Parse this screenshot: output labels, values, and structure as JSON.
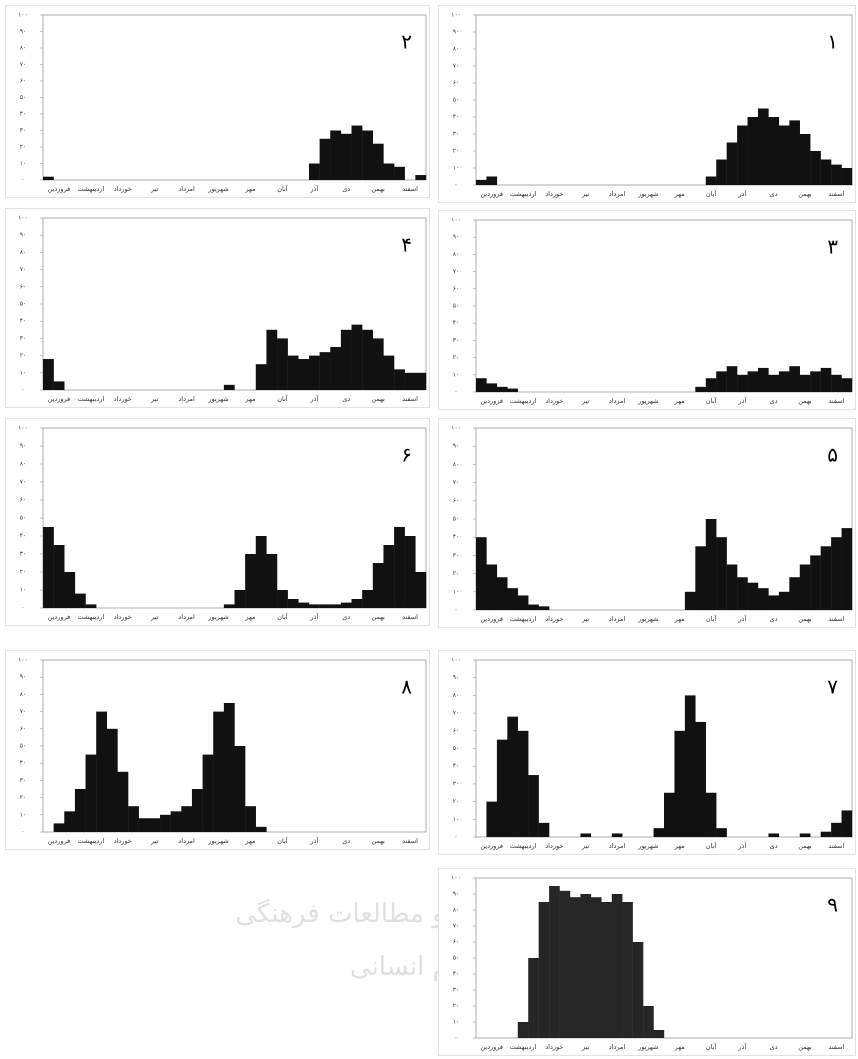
{
  "chart_data": [
    {
      "type": "bar",
      "title": "۱",
      "color": "#111111",
      "ylim": [
        0,
        100
      ],
      "yticks": [
        {
          "value": 0,
          "label": "۰"
        },
        {
          "value": 10,
          "label": "۱۰"
        },
        {
          "value": 20,
          "label": "۲۰"
        },
        {
          "value": 30,
          "label": "۳۰"
        },
        {
          "value": 40,
          "label": "۴۰"
        },
        {
          "value": 50,
          "label": "۵۰"
        },
        {
          "value": 60,
          "label": "۶۰"
        },
        {
          "value": 70,
          "label": "۷۰"
        },
        {
          "value": 80,
          "label": "۸۰"
        },
        {
          "value": 90,
          "label": "۹۰"
        },
        {
          "value": 100,
          "label": "۱۰۰"
        }
      ],
      "categories": [
        null,
        "فروردین",
        null,
        null,
        "اردیبهشت",
        null,
        null,
        "خورداد",
        null,
        null,
        "تیر",
        null,
        null,
        "امرداد",
        null,
        null,
        "شهریور",
        null,
        null,
        "مهر",
        null,
        null,
        "آبان",
        null,
        null,
        "آذر",
        null,
        null,
        "دی",
        null,
        null,
        "بهمن",
        null,
        null,
        "اسفند",
        null
      ],
      "values": [
        3,
        5,
        0,
        0,
        0,
        0,
        0,
        0,
        0,
        0,
        0,
        0,
        0,
        0,
        0,
        0,
        0,
        0,
        0,
        0,
        0,
        0,
        5,
        15,
        25,
        35,
        40,
        45,
        40,
        35,
        38,
        30,
        20,
        15,
        12,
        10
      ]
    },
    {
      "type": "bar",
      "title": "۲",
      "color": "#111111",
      "ylim": [
        0,
        100
      ],
      "yticks": [
        {
          "value": 0,
          "label": "۰"
        },
        {
          "value": 10,
          "label": "۱۰"
        },
        {
          "value": 20,
          "label": "۲۰"
        },
        {
          "value": 30,
          "label": "۳۰"
        },
        {
          "value": 40,
          "label": "۴۰"
        },
        {
          "value": 50,
          "label": "۵۰"
        },
        {
          "value": 60,
          "label": "۶۰"
        },
        {
          "value": 70,
          "label": "۷۰"
        },
        {
          "value": 80,
          "label": "۸۰"
        },
        {
          "value": 90,
          "label": "۹۰"
        },
        {
          "value": 100,
          "label": "۱۰۰"
        }
      ],
      "categories": [
        null,
        "فروردین",
        null,
        null,
        "اردیبهشت",
        null,
        null,
        "خورداد",
        null,
        null,
        "تیر",
        null,
        null,
        "امرداد",
        null,
        null,
        "شهریور",
        null,
        null,
        "مهر",
        null,
        null,
        "آبان",
        null,
        null,
        "آذر",
        null,
        null,
        "دی",
        null,
        null,
        "بهمن",
        null,
        null,
        "اسفند",
        null
      ],
      "values": [
        2,
        0,
        0,
        0,
        0,
        0,
        0,
        0,
        0,
        0,
        0,
        0,
        0,
        0,
        0,
        0,
        0,
        0,
        0,
        0,
        0,
        0,
        0,
        0,
        0,
        10,
        25,
        30,
        28,
        33,
        30,
        22,
        10,
        8,
        0,
        3
      ]
    },
    {
      "type": "bar",
      "title": "۳",
      "color": "#111111",
      "ylim": [
        0,
        100
      ],
      "yticks": [
        {
          "value": 0,
          "label": "۰"
        },
        {
          "value": 10,
          "label": "۱۰"
        },
        {
          "value": 20,
          "label": "۲۰"
        },
        {
          "value": 30,
          "label": "۳۰"
        },
        {
          "value": 40,
          "label": "۴۰"
        },
        {
          "value": 50,
          "label": "۵۰"
        },
        {
          "value": 60,
          "label": "۶۰"
        },
        {
          "value": 70,
          "label": "۷۰"
        },
        {
          "value": 80,
          "label": "۸۰"
        },
        {
          "value": 90,
          "label": "۹۰"
        },
        {
          "value": 100,
          "label": "۱۰۰"
        }
      ],
      "categories": [
        null,
        "فروردین",
        null,
        null,
        "اردیبهشت",
        null,
        null,
        "خورداد",
        null,
        null,
        "تیر",
        null,
        null,
        "امرداد",
        null,
        null,
        "شهریور",
        null,
        null,
        "مهر",
        null,
        null,
        "آبان",
        null,
        null,
        "آذر",
        null,
        null,
        "دی",
        null,
        null,
        "بهمن",
        null,
        null,
        "اسفند",
        null
      ],
      "values": [
        8,
        5,
        3,
        2,
        0,
        0,
        0,
        0,
        0,
        0,
        0,
        0,
        0,
        0,
        0,
        0,
        0,
        0,
        0,
        0,
        0,
        3,
        8,
        12,
        15,
        10,
        12,
        14,
        10,
        12,
        15,
        10,
        12,
        14,
        10,
        8
      ]
    },
    {
      "type": "bar",
      "title": "۴",
      "color": "#111111",
      "ylim": [
        0,
        100
      ],
      "yticks": [
        {
          "value": 0,
          "label": "۰"
        },
        {
          "value": 10,
          "label": "۱۰"
        },
        {
          "value": 20,
          "label": "۲۰"
        },
        {
          "value": 30,
          "label": "۳۰"
        },
        {
          "value": 40,
          "label": "۴۰"
        },
        {
          "value": 50,
          "label": "۵۰"
        },
        {
          "value": 60,
          "label": "۶۰"
        },
        {
          "value": 70,
          "label": "۷۰"
        },
        {
          "value": 80,
          "label": "۸۰"
        },
        {
          "value": 90,
          "label": "۹۰"
        },
        {
          "value": 100,
          "label": "۱۰۰"
        }
      ],
      "categories": [
        null,
        "فروردین",
        null,
        null,
        "اردیبهشت",
        null,
        null,
        "خورداد",
        null,
        null,
        "تیر",
        null,
        null,
        "امرداد",
        null,
        null,
        "شهریور",
        null,
        null,
        "مهر",
        null,
        null,
        "آبان",
        null,
        null,
        "آذر",
        null,
        null,
        "دی",
        null,
        null,
        "بهمن",
        null,
        null,
        "اسفند",
        null
      ],
      "values": [
        18,
        5,
        0,
        0,
        0,
        0,
        0,
        0,
        0,
        0,
        0,
        0,
        0,
        0,
        0,
        0,
        0,
        3,
        0,
        0,
        15,
        35,
        30,
        20,
        18,
        20,
        22,
        25,
        35,
        38,
        35,
        30,
        20,
        12,
        10,
        10
      ]
    },
    {
      "type": "bar",
      "title": "۵",
      "color": "#111111",
      "ylim": [
        0,
        100
      ],
      "yticks": [
        {
          "value": 0,
          "label": "۰"
        },
        {
          "value": 10,
          "label": "۱۰"
        },
        {
          "value": 20,
          "label": "۲۰"
        },
        {
          "value": 30,
          "label": "۳۰"
        },
        {
          "value": 40,
          "label": "۴۰"
        },
        {
          "value": 50,
          "label": "۵۰"
        },
        {
          "value": 60,
          "label": "۶۰"
        },
        {
          "value": 70,
          "label": "۷۰"
        },
        {
          "value": 80,
          "label": "۸۰"
        },
        {
          "value": 90,
          "label": "۹۰"
        },
        {
          "value": 100,
          "label": "۱۰۰"
        }
      ],
      "categories": [
        null,
        "فروردین",
        null,
        null,
        "اردیبهشت",
        null,
        null,
        "خورداد",
        null,
        null,
        "تیر",
        null,
        null,
        "امرداد",
        null,
        null,
        "شهریور",
        null,
        null,
        "مهر",
        null,
        null,
        "آبان",
        null,
        null,
        "آذر",
        null,
        null,
        "دی",
        null,
        null,
        "بهمن",
        null,
        null,
        "اسفند",
        null
      ],
      "values": [
        40,
        25,
        18,
        12,
        8,
        3,
        2,
        0,
        0,
        0,
        0,
        0,
        0,
        0,
        0,
        0,
        0,
        0,
        0,
        0,
        10,
        35,
        50,
        40,
        25,
        18,
        15,
        12,
        8,
        10,
        18,
        25,
        30,
        35,
        40,
        45
      ]
    },
    {
      "type": "bar",
      "title": "۶",
      "color": "#111111",
      "ylim": [
        0,
        100
      ],
      "yticks": [
        {
          "value": 0,
          "label": "۰"
        },
        {
          "value": 10,
          "label": "۱۰"
        },
        {
          "value": 20,
          "label": "۲۰"
        },
        {
          "value": 30,
          "label": "۳۰"
        },
        {
          "value": 40,
          "label": "۴۰"
        },
        {
          "value": 50,
          "label": "۵۰"
        },
        {
          "value": 60,
          "label": "۶۰"
        },
        {
          "value": 70,
          "label": "۷۰"
        },
        {
          "value": 80,
          "label": "۸۰"
        },
        {
          "value": 90,
          "label": "۹۰"
        },
        {
          "value": 100,
          "label": "۱۰۰"
        }
      ],
      "categories": [
        null,
        "فروردین",
        null,
        null,
        "اردیبهشت",
        null,
        null,
        "خورداد",
        null,
        null,
        "تیر",
        null,
        null,
        "امرداد",
        null,
        null,
        "شهریور",
        null,
        null,
        "مهر",
        null,
        null,
        "آبان",
        null,
        null,
        "آذر",
        null,
        null,
        "دی",
        null,
        null,
        "بهمن",
        null,
        null,
        "اسفند",
        null
      ],
      "values": [
        45,
        35,
        20,
        8,
        2,
        0,
        0,
        0,
        0,
        0,
        0,
        0,
        0,
        0,
        0,
        0,
        0,
        2,
        10,
        30,
        40,
        30,
        10,
        5,
        3,
        2,
        2,
        2,
        3,
        5,
        10,
        25,
        35,
        45,
        40,
        20
      ]
    },
    {
      "type": "bar",
      "title": "۷",
      "color": "#111111",
      "ylim": [
        0,
        100
      ],
      "yticks": [
        {
          "value": 0,
          "label": "۰"
        },
        {
          "value": 10,
          "label": "۱۰"
        },
        {
          "value": 20,
          "label": "۲۰"
        },
        {
          "value": 30,
          "label": "۳۰"
        },
        {
          "value": 40,
          "label": "۴۰"
        },
        {
          "value": 50,
          "label": "۵۰"
        },
        {
          "value": 60,
          "label": "۶۰"
        },
        {
          "value": 70,
          "label": "۷۰"
        },
        {
          "value": 80,
          "label": "۸۰"
        },
        {
          "value": 90,
          "label": "۹۰"
        },
        {
          "value": 100,
          "label": "۱۰۰"
        }
      ],
      "categories": [
        null,
        "فروردین",
        null,
        null,
        "اردیبهشت",
        null,
        null,
        "خورداد",
        null,
        null,
        "تیر",
        null,
        null,
        "امرداد",
        null,
        null,
        "شهریور",
        null,
        null,
        "مهر",
        null,
        null,
        "آبان",
        null,
        null,
        "آذر",
        null,
        null,
        "دی",
        null,
        null,
        "بهمن",
        null,
        null,
        "اسفند",
        null
      ],
      "values": [
        0,
        20,
        55,
        68,
        60,
        35,
        8,
        0,
        0,
        0,
        2,
        0,
        0,
        2,
        0,
        0,
        0,
        5,
        25,
        60,
        80,
        65,
        25,
        5,
        0,
        0,
        0,
        0,
        2,
        0,
        0,
        2,
        0,
        3,
        8,
        15
      ]
    },
    {
      "type": "bar",
      "title": "۸",
      "color": "#111111",
      "ylim": [
        0,
        100
      ],
      "yticks": [
        {
          "value": 0,
          "label": "۰"
        },
        {
          "value": 10,
          "label": "۱۰"
        },
        {
          "value": 20,
          "label": "۲۰"
        },
        {
          "value": 30,
          "label": "۳۰"
        },
        {
          "value": 40,
          "label": "۴۰"
        },
        {
          "value": 50,
          "label": "۵۰"
        },
        {
          "value": 60,
          "label": "۶۰"
        },
        {
          "value": 70,
          "label": "۷۰"
        },
        {
          "value": 80,
          "label": "۸۰"
        },
        {
          "value": 90,
          "label": "۹۰"
        },
        {
          "value": 100,
          "label": "۱۰۰"
        }
      ],
      "categories": [
        null,
        "فروردین",
        null,
        null,
        "اردیبهشت",
        null,
        null,
        "خورداد",
        null,
        null,
        "تیر",
        null,
        null,
        "امرداد",
        null,
        null,
        "شهریور",
        null,
        null,
        "مهر",
        null,
        null,
        "آبان",
        null,
        null,
        "آذر",
        null,
        null,
        "دی",
        null,
        null,
        "بهمن",
        null,
        null,
        "اسفند",
        null
      ],
      "values": [
        0,
        5,
        12,
        25,
        45,
        70,
        60,
        35,
        15,
        8,
        8,
        10,
        12,
        15,
        25,
        45,
        70,
        75,
        50,
        15,
        3,
        0,
        0,
        0,
        0,
        0,
        0,
        0,
        0,
        0,
        0,
        0,
        0,
        0,
        0,
        0
      ]
    },
    {
      "type": "bar",
      "title": "۹",
      "color": "#262626",
      "ylim": [
        0,
        100
      ],
      "yticks": [
        {
          "value": 0,
          "label": "۰"
        },
        {
          "value": 10,
          "label": "۱۰"
        },
        {
          "value": 20,
          "label": "۲۰"
        },
        {
          "value": 30,
          "label": "۳۰"
        },
        {
          "value": 40,
          "label": "۴۰"
        },
        {
          "value": 50,
          "label": "۵۰"
        },
        {
          "value": 60,
          "label": "۶۰"
        },
        {
          "value": 70,
          "label": "۷۰"
        },
        {
          "value": 80,
          "label": "۸۰"
        },
        {
          "value": 90,
          "label": "۹۰"
        },
        {
          "value": 100,
          "label": "۱۰۰"
        }
      ],
      "categories": [
        null,
        "فروردین",
        null,
        null,
        "اردیبهشت",
        null,
        null,
        "خورداد",
        null,
        null,
        "تیر",
        null,
        null,
        "امرداد",
        null,
        null,
        "شهریور",
        null,
        null,
        "مهر",
        null,
        null,
        "آبان",
        null,
        null,
        "آذر",
        null,
        null,
        "دی",
        null,
        null,
        "بهمن",
        null,
        null,
        "اسفند",
        null
      ],
      "values": [
        0,
        0,
        0,
        0,
        10,
        50,
        85,
        95,
        92,
        88,
        90,
        88,
        85,
        90,
        85,
        60,
        20,
        5,
        0,
        0,
        0,
        0,
        0,
        0,
        0,
        0,
        0,
        0,
        0,
        0,
        0,
        0,
        0,
        0,
        0,
        0
      ]
    }
  ],
  "watermark": {
    "lines": [
      "پژوهشگاه علوم انسانی و مطالعات فرهنگی",
      "پرتال جامع علوم انسانی"
    ]
  }
}
